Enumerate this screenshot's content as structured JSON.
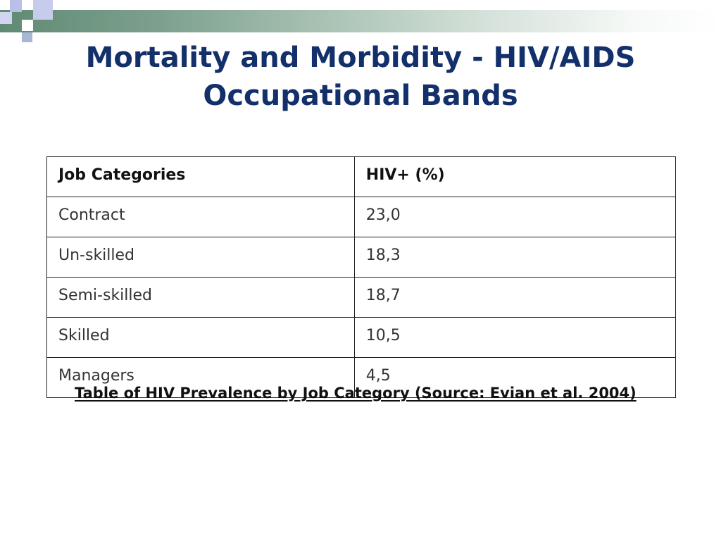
{
  "title": {
    "line1": "Mortality and Morbidity - HIV/AIDS",
    "line2": "Occupational Bands"
  },
  "table": {
    "headers": [
      "Job Categories",
      "HIV+ (%)"
    ],
    "rows": [
      [
        "Contract",
        "23,0"
      ],
      [
        "Un-skilled",
        "18,3"
      ],
      [
        "Semi-skilled",
        "18,7"
      ],
      [
        "Skilled",
        "10,5"
      ],
      [
        "Managers",
        "4,5"
      ]
    ]
  },
  "caption": "Table of HIV Prevalence by Job Category (Source: Evian et al. 2004)",
  "colors": {
    "title": "#13306b",
    "header_bar_start": "#5f8a74",
    "accent_squares": "#b9bfe6"
  }
}
